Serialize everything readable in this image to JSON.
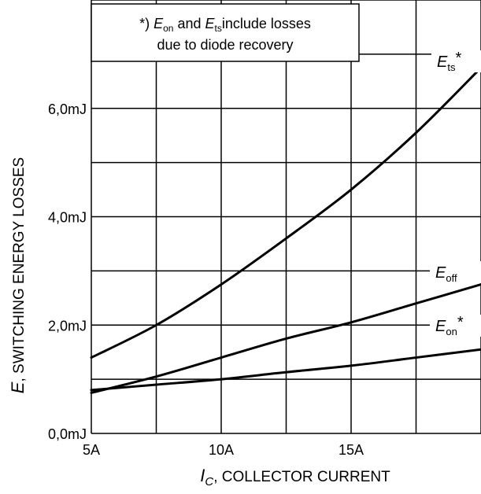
{
  "chart_data": {
    "type": "line",
    "xlabel_main": "I",
    "xlabel_sub": "C",
    "xlabel_rest": ", COLLECTOR CURRENT",
    "ylabel_main": "E",
    "ylabel_rest": ", SWITCHING ENERGY LOSSES",
    "x_ticks": [
      {
        "value": 5,
        "label": "5A"
      },
      {
        "value": 10,
        "label": "10A"
      },
      {
        "value": 15,
        "label": "15A"
      }
    ],
    "y_ticks": [
      {
        "value": 0,
        "label": "0,0mJ"
      },
      {
        "value": 2,
        "label": "2,0mJ"
      },
      {
        "value": 4,
        "label": "4,0mJ"
      },
      {
        "value": 6,
        "label": "6,0mJ"
      }
    ],
    "xlim": [
      5,
      20
    ],
    "ylim": [
      0,
      8
    ],
    "x_gridlines": [
      5,
      7.5,
      10,
      12.5,
      15,
      17.5,
      20
    ],
    "y_gridlines": [
      0,
      1,
      2,
      3,
      4,
      5,
      6,
      7,
      8
    ],
    "series": [
      {
        "name_main": "E",
        "name_sub": "ts",
        "name_suffix": "*",
        "x": [
          5,
          7.5,
          10,
          12.5,
          15,
          17.5,
          20
        ],
        "y": [
          1.4,
          2.0,
          2.75,
          3.6,
          4.5,
          5.55,
          6.75
        ]
      },
      {
        "name_main": "E",
        "name_sub": "off",
        "name_suffix": "",
        "x": [
          5,
          7.5,
          10,
          12.5,
          15,
          17.5,
          20
        ],
        "y": [
          0.75,
          1.05,
          1.4,
          1.75,
          2.05,
          2.4,
          2.75
        ]
      },
      {
        "name_main": "E",
        "name_sub": "on",
        "name_suffix": "*",
        "x": [
          5,
          7.5,
          10,
          12.5,
          15,
          17.5,
          20
        ],
        "y": [
          0.8,
          0.9,
          1.0,
          1.13,
          1.25,
          1.4,
          1.55
        ]
      }
    ],
    "annotation": {
      "prefix": "*) ",
      "e1_main": "E",
      "e1_sub": "on",
      "and": " and ",
      "e2_main": "E",
      "e2_sub": "ts",
      "rest1": "include losses",
      "line2": "due to diode recovery"
    }
  }
}
